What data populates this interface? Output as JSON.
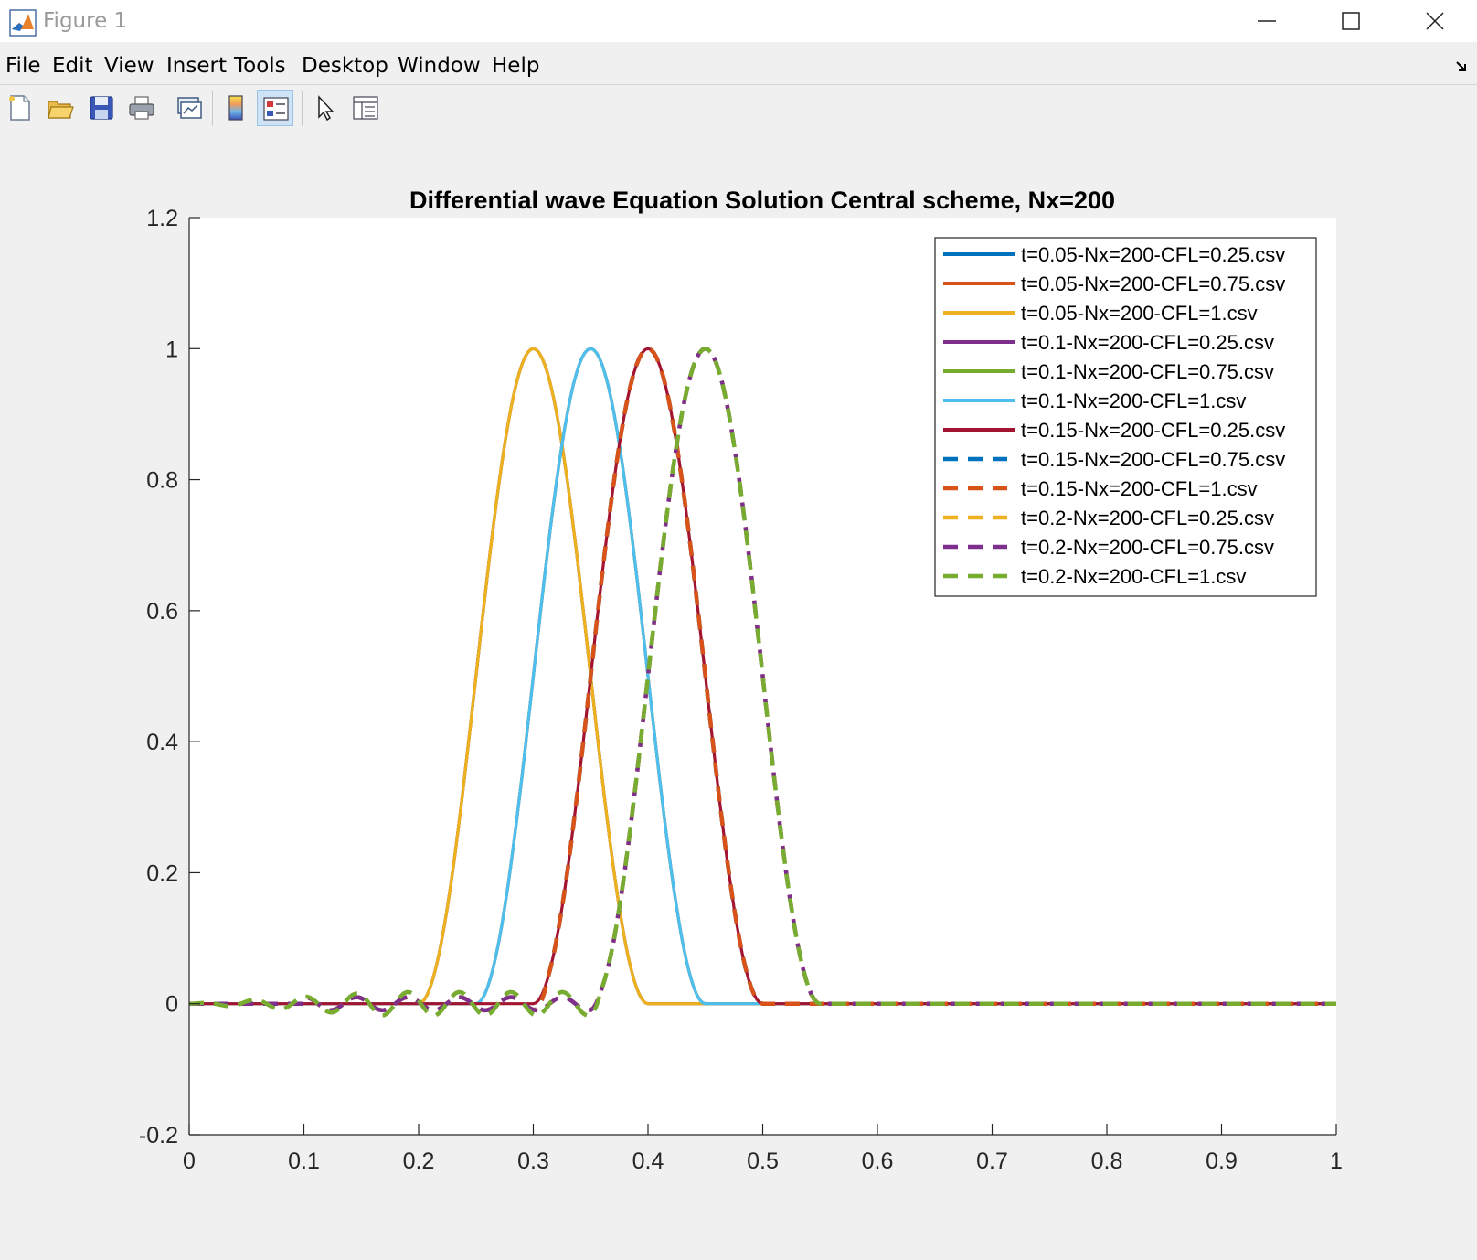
{
  "window": {
    "title": "Figure 1",
    "app_icon": "matlab-logo-icon",
    "controls": [
      "minimize-icon",
      "maximize-icon",
      "close-icon"
    ]
  },
  "menu": [
    "File",
    "Edit",
    "View",
    "Insert",
    "Tools",
    "Desktop",
    "Window",
    "Help"
  ],
  "dock_icon": "dock-arrow-icon",
  "toolbar": [
    {
      "name": "new-figure-button",
      "icon": "new-file-icon"
    },
    {
      "name": "open-file-button",
      "icon": "open-folder-icon"
    },
    {
      "name": "save-figure-button",
      "icon": "save-disk-icon"
    },
    {
      "name": "print-figure-button",
      "icon": "printer-icon"
    },
    {
      "name": "link-plot-button",
      "icon": "link-plot-icon"
    },
    {
      "name": "insert-colorbar-button",
      "icon": "colorbar-icon"
    },
    {
      "name": "insert-legend-button",
      "icon": "legend-icon",
      "active": true
    },
    {
      "name": "edit-plot-button",
      "icon": "pointer-arrow-icon"
    },
    {
      "name": "property-inspector-button",
      "icon": "property-inspector-icon"
    }
  ],
  "chart_data": {
    "type": "line",
    "title": "Differential wave Equation Solution Central scheme, Nx=200",
    "xlabel": "",
    "ylabel": "",
    "xlim": [
      0,
      1
    ],
    "ylim": [
      -0.2,
      1.2
    ],
    "xticks": [
      "0",
      "0.1",
      "0.2",
      "0.3",
      "0.4",
      "0.5",
      "0.6",
      "0.7",
      "0.8",
      "0.9",
      "1"
    ],
    "yticks": [
      "-0.2",
      "0",
      "0.2",
      "0.4",
      "0.6",
      "0.8",
      "1",
      "1.2"
    ],
    "grid": false,
    "legend_position": "top-right",
    "series": [
      {
        "name": "t=0.05-Nx=200-CFL=0.25.csv",
        "color": "#0072BD",
        "dashed": false,
        "center": 0.3,
        "peak": 1.0,
        "halfwidth": 0.1,
        "x": [
          0,
          0.15,
          0.2,
          0.22,
          0.24,
          0.26,
          0.28,
          0.3,
          0.32,
          0.34,
          0.36,
          0.38,
          0.4,
          0.45,
          1
        ],
        "y": [
          0,
          0,
          0.02,
          0.1,
          0.35,
          0.65,
          0.9,
          1.0,
          0.9,
          0.65,
          0.35,
          0.1,
          0.02,
          0,
          0
        ]
      },
      {
        "name": "t=0.05-Nx=200-CFL=0.75.csv",
        "color": "#D95319",
        "dashed": false,
        "center": 0.3,
        "peak": 1.0,
        "halfwidth": 0.1,
        "x": [
          0,
          0.15,
          0.2,
          0.22,
          0.24,
          0.26,
          0.28,
          0.3,
          0.32,
          0.34,
          0.36,
          0.38,
          0.4,
          0.45,
          1
        ],
        "y": [
          0,
          0,
          0.02,
          0.1,
          0.35,
          0.65,
          0.9,
          1.0,
          0.9,
          0.65,
          0.35,
          0.1,
          0.02,
          0,
          0
        ]
      },
      {
        "name": "t=0.05-Nx=200-CFL=1.csv",
        "color": "#EDB120",
        "dashed": false,
        "center": 0.3,
        "peak": 1.0,
        "halfwidth": 0.1,
        "x": [
          0,
          0.15,
          0.2,
          0.22,
          0.24,
          0.26,
          0.28,
          0.3,
          0.32,
          0.34,
          0.36,
          0.38,
          0.4,
          0.45,
          1
        ],
        "y": [
          0,
          0,
          0.02,
          0.1,
          0.35,
          0.65,
          0.9,
          1.0,
          0.9,
          0.65,
          0.35,
          0.1,
          0.02,
          0,
          0
        ]
      },
      {
        "name": "t=0.1-Nx=200-CFL=0.25.csv",
        "color": "#7E2F8E",
        "dashed": false,
        "center": 0.35,
        "peak": 1.0,
        "halfwidth": 0.1,
        "x": [
          0,
          0.2,
          0.25,
          0.27,
          0.29,
          0.31,
          0.33,
          0.35,
          0.37,
          0.39,
          0.41,
          0.43,
          0.45,
          0.5,
          1
        ],
        "y": [
          0,
          0,
          0.02,
          0.1,
          0.35,
          0.65,
          0.9,
          1.0,
          0.9,
          0.65,
          0.35,
          0.1,
          0.02,
          0,
          0
        ]
      },
      {
        "name": "t=0.1-Nx=200-CFL=0.75.csv",
        "color": "#77AC30",
        "dashed": false,
        "center": 0.35,
        "peak": 1.0,
        "halfwidth": 0.1,
        "x": [
          0,
          0.2,
          0.25,
          0.27,
          0.29,
          0.31,
          0.33,
          0.35,
          0.37,
          0.39,
          0.41,
          0.43,
          0.45,
          0.5,
          1
        ],
        "y": [
          0,
          0,
          0.02,
          0.1,
          0.35,
          0.65,
          0.9,
          1.0,
          0.9,
          0.65,
          0.35,
          0.1,
          0.02,
          0,
          0
        ]
      },
      {
        "name": "t=0.1-Nx=200-CFL=1.csv",
        "color": "#4DBEEE",
        "dashed": false,
        "center": 0.35,
        "peak": 1.0,
        "halfwidth": 0.1,
        "x": [
          0,
          0.2,
          0.25,
          0.27,
          0.29,
          0.31,
          0.33,
          0.35,
          0.37,
          0.39,
          0.41,
          0.43,
          0.45,
          0.5,
          1
        ],
        "y": [
          0,
          0,
          0.02,
          0.1,
          0.35,
          0.65,
          0.9,
          1.0,
          0.9,
          0.65,
          0.35,
          0.1,
          0.02,
          0,
          0
        ]
      },
      {
        "name": "t=0.15-Nx=200-CFL=0.25.csv",
        "color": "#A2142F",
        "dashed": false,
        "center": 0.4,
        "peak": 1.0,
        "halfwidth": 0.1,
        "x": [
          0,
          0.25,
          0.3,
          0.32,
          0.34,
          0.36,
          0.38,
          0.4,
          0.42,
          0.44,
          0.46,
          0.48,
          0.5,
          0.55,
          1
        ],
        "y": [
          0,
          0,
          0.02,
          0.1,
          0.35,
          0.65,
          0.9,
          1.0,
          0.9,
          0.65,
          0.35,
          0.1,
          0.02,
          0,
          0
        ]
      },
      {
        "name": "t=0.15-Nx=200-CFL=0.75.csv",
        "color": "#0072BD",
        "dashed": true,
        "center": 0.4,
        "peak": 1.0,
        "halfwidth": 0.1,
        "x": [
          0,
          0.25,
          0.3,
          0.32,
          0.34,
          0.36,
          0.38,
          0.4,
          0.42,
          0.44,
          0.46,
          0.48,
          0.5,
          0.55,
          1
        ],
        "y": [
          0,
          0,
          0.02,
          0.1,
          0.35,
          0.65,
          0.9,
          1.0,
          0.9,
          0.65,
          0.35,
          0.1,
          0.02,
          0,
          0
        ]
      },
      {
        "name": "t=0.15-Nx=200-CFL=1.csv",
        "color": "#D95319",
        "dashed": true,
        "center": 0.4,
        "peak": 1.0,
        "halfwidth": 0.1,
        "x": [
          0,
          0.25,
          0.3,
          0.32,
          0.34,
          0.36,
          0.38,
          0.4,
          0.42,
          0.44,
          0.46,
          0.48,
          0.5,
          0.55,
          1
        ],
        "y": [
          0,
          0,
          0.02,
          0.1,
          0.35,
          0.65,
          0.9,
          1.0,
          0.9,
          0.65,
          0.35,
          0.1,
          0.02,
          0,
          0
        ]
      },
      {
        "name": "t=0.2-Nx=200-CFL=0.25.csv",
        "color": "#EDB120",
        "dashed": true,
        "center": 0.45,
        "peak": 1.0,
        "halfwidth": 0.1,
        "x": [
          0,
          0.3,
          0.35,
          0.37,
          0.39,
          0.41,
          0.43,
          0.45,
          0.47,
          0.49,
          0.51,
          0.53,
          0.55,
          0.6,
          1
        ],
        "y": [
          0,
          0,
          0.02,
          0.1,
          0.35,
          0.65,
          0.9,
          1.0,
          0.9,
          0.65,
          0.35,
          0.1,
          0.02,
          0,
          0
        ]
      },
      {
        "name": "t=0.2-Nx=200-CFL=0.75.csv",
        "color": "#7E2F8E",
        "dashed": true,
        "center": 0.45,
        "peak": 1.0,
        "halfwidth": 0.1,
        "x": [
          0,
          0.3,
          0.35,
          0.37,
          0.39,
          0.41,
          0.43,
          0.45,
          0.47,
          0.49,
          0.51,
          0.53,
          0.55,
          0.6,
          1
        ],
        "y": [
          0,
          0,
          0.02,
          0.1,
          0.35,
          0.65,
          0.9,
          1.0,
          0.9,
          0.65,
          0.35,
          0.1,
          0.02,
          0,
          0
        ]
      },
      {
        "name": "t=0.2-Nx=200-CFL=1.csv",
        "color": "#77AC30",
        "dashed": true,
        "center": 0.45,
        "peak": 1.0,
        "halfwidth": 0.1,
        "x": [
          0,
          0.02,
          0.04,
          0.06,
          0.08,
          0.1,
          0.12,
          0.14,
          0.16,
          0.18,
          0.2,
          0.22,
          0.24,
          0.26,
          0.28,
          0.3,
          0.32,
          0.34,
          0.36,
          0.38,
          0.4,
          0.42,
          0.44,
          0.45,
          0.46,
          0.48,
          0.5,
          0.52,
          0.54,
          0.56,
          0.58,
          0.6,
          1
        ],
        "y": [
          0,
          0.003,
          -0.005,
          0.008,
          -0.01,
          0.015,
          -0.015,
          0.02,
          -0.02,
          0.02,
          -0.02,
          0.015,
          -0.01,
          0.01,
          -0.01,
          0.01,
          -0.01,
          0.03,
          0.2,
          0.46,
          0.7,
          0.9,
          0.99,
          1.02,
          0.97,
          0.78,
          0.5,
          0.25,
          0.08,
          0.02,
          0.005,
          0,
          0
        ]
      }
    ]
  }
}
